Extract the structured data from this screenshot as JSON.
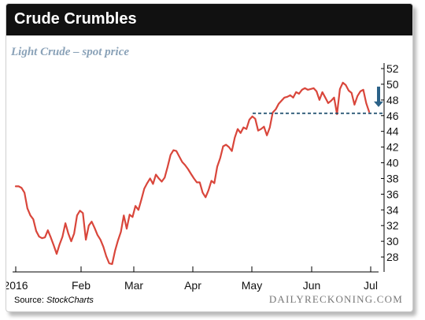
{
  "title": "Crude Crumbles",
  "source": {
    "prefix": "Source:",
    "name": "StockCharts"
  },
  "brand": "DAILYRECKONING.COM",
  "colors": {
    "line": "#d9463b",
    "support": "#1e4e6e",
    "arrow": "#2b6288",
    "title_bg": "#111111"
  },
  "chart_data": {
    "type": "line",
    "subtitle": "Light Crude – spot price",
    "x_tick_labels": [
      "2016",
      "Feb",
      "Mar",
      "Apr",
      "May",
      "Jun",
      "Jul"
    ],
    "y_tick_labels": [
      28,
      30,
      32,
      34,
      36,
      38,
      40,
      42,
      44,
      46,
      48,
      50,
      52
    ],
    "ylim": [
      26.5,
      52.5
    ],
    "grid": false,
    "y_axis_side": "right",
    "series": [
      {
        "values": [
          37.0,
          37.0,
          36.8,
          36.2,
          34.2,
          33.3,
          32.8,
          31.3,
          30.6,
          30.4,
          30.5,
          31.4,
          30.5,
          29.5,
          28.4,
          29.6,
          30.6,
          32.3,
          31.0,
          30.0,
          31.0,
          33.3,
          33.9,
          33.6,
          30.2,
          32.0,
          32.5,
          31.7,
          30.8,
          30.2,
          29.3,
          28.1,
          27.2,
          27.1,
          28.8,
          30.1,
          31.2,
          33.3,
          31.6,
          33.4,
          33.1,
          34.5,
          34.0,
          35.3,
          36.7,
          37.4,
          38.0,
          37.3,
          38.5,
          38.0,
          37.6,
          38.1,
          39.5,
          41.0,
          41.6,
          41.5,
          40.8,
          40.1,
          39.7,
          39.2,
          38.6,
          38.0,
          37.5,
          37.5,
          36.2,
          35.6,
          36.5,
          37.7,
          37.4,
          39.5,
          40.6,
          42.1,
          42.3,
          42.0,
          41.5,
          43.2,
          44.3,
          43.8,
          44.5,
          44.3,
          45.5,
          45.9,
          45.6,
          44.1,
          44.3,
          44.6,
          43.5,
          44.5,
          46.4,
          46.8,
          47.5,
          47.9,
          48.3,
          48.4,
          48.6,
          48.3,
          49.0,
          48.8,
          49.3,
          49.5,
          49.3,
          49.4,
          49.5,
          49.1,
          48.0,
          49.0,
          48.3,
          47.6,
          47.9,
          48.3,
          46.2,
          49.4,
          50.2,
          49.9,
          49.2,
          48.9,
          47.4,
          48.5,
          49.1,
          49.3,
          47.6,
          46.5
        ]
      }
    ],
    "annotations": [
      {
        "type": "support-line",
        "value": 46.3,
        "label": ""
      },
      {
        "type": "down-arrow",
        "label": ""
      }
    ]
  }
}
